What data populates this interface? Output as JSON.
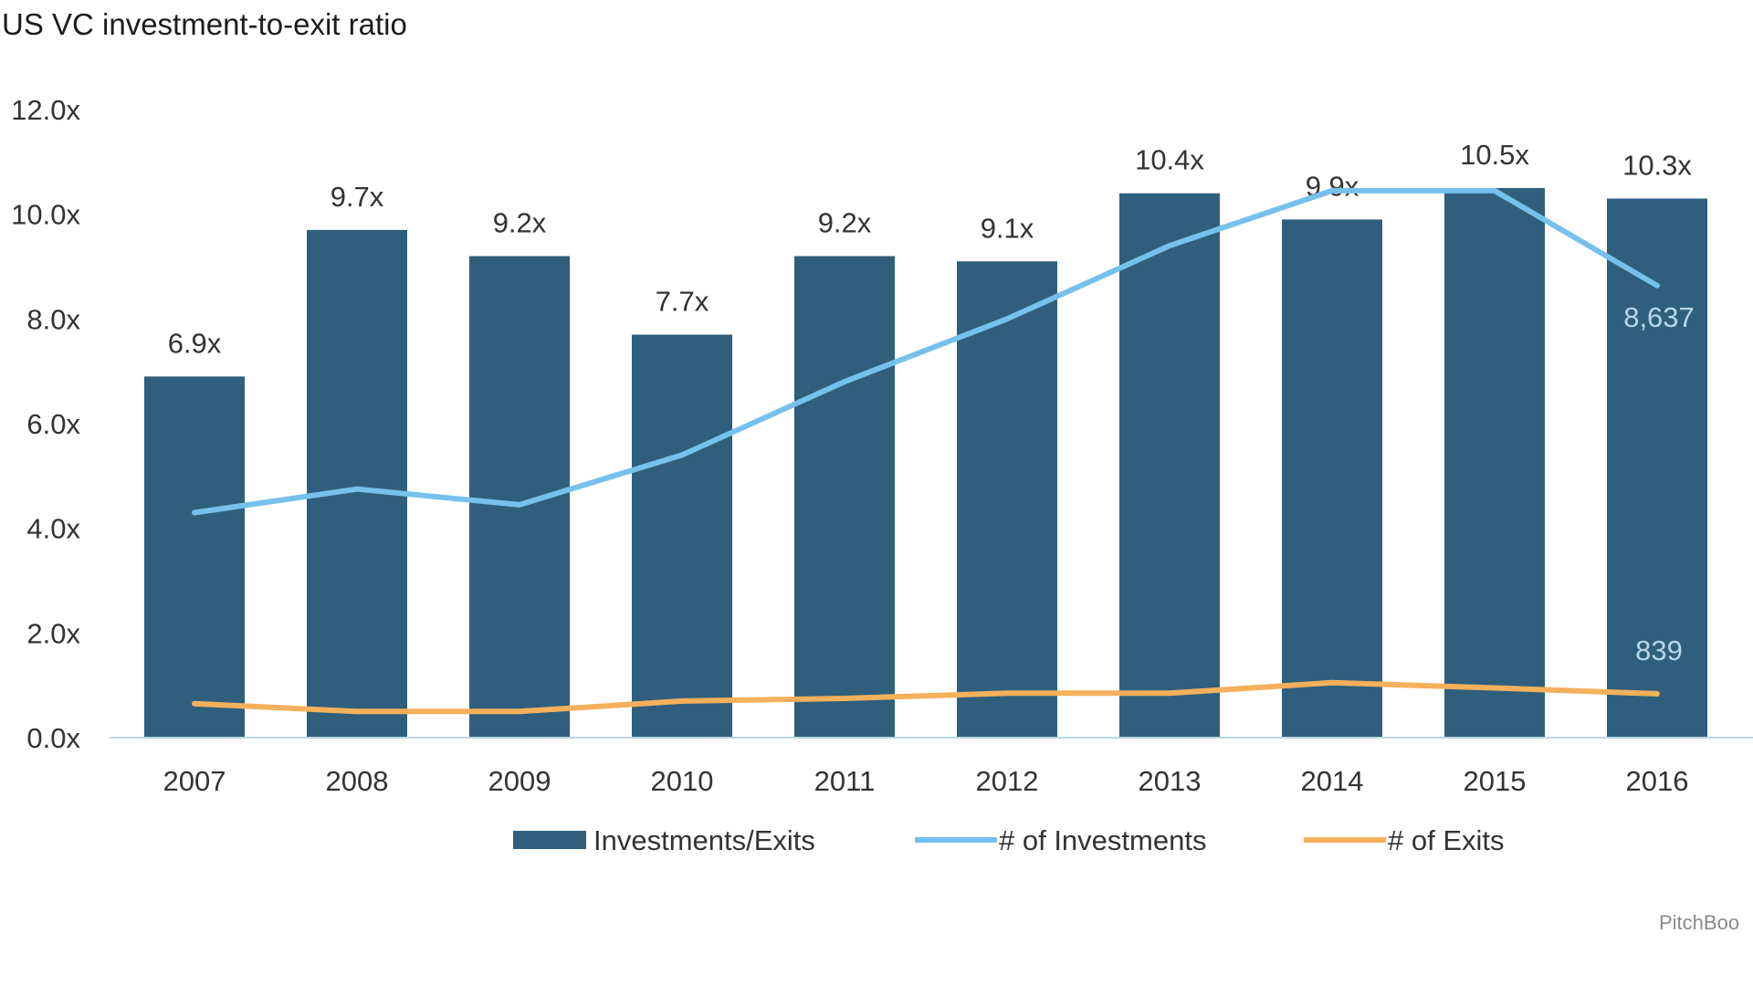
{
  "title": "US VC investment-to-exit ratio",
  "source": "PitchBoo",
  "chart_data": {
    "type": "bar",
    "categories": [
      "2007",
      "2008",
      "2009",
      "2010",
      "2011",
      "2012",
      "2013",
      "2014",
      "2015",
      "2016"
    ],
    "ylim": [
      0,
      12
    ],
    "yticks": [
      "0.0x",
      "2.0x",
      "4.0x",
      "6.0x",
      "8.0x",
      "10.0x",
      "12.0x"
    ],
    "grid": false,
    "legend_position": "bottom",
    "series": [
      {
        "name": "Investments/Exits",
        "type": "bar",
        "color": "#2f5f7c",
        "values": [
          6.9,
          9.7,
          9.2,
          7.7,
          9.2,
          9.1,
          10.4,
          9.9,
          10.5,
          10.3
        ],
        "labels": [
          "6.9x",
          "9.7x",
          "9.2x",
          "7.7x",
          "9.2x",
          "9.1x",
          "10.4x",
          "9.9x",
          "10.5x",
          "10.3x"
        ]
      },
      {
        "name": "# of Investments",
        "type": "line",
        "color": "#76c1ec",
        "values": [
          4.3,
          4.75,
          4.45,
          5.4,
          6.8,
          8.0,
          9.4,
          10.45,
          10.45,
          8.637
        ],
        "end_label": "8,637"
      },
      {
        "name": "# of Exits",
        "type": "line",
        "color": "#f5b05c",
        "values": [
          0.65,
          0.5,
          0.5,
          0.7,
          0.75,
          0.85,
          0.85,
          1.05,
          0.95,
          0.839
        ],
        "end_label": "839"
      }
    ]
  }
}
